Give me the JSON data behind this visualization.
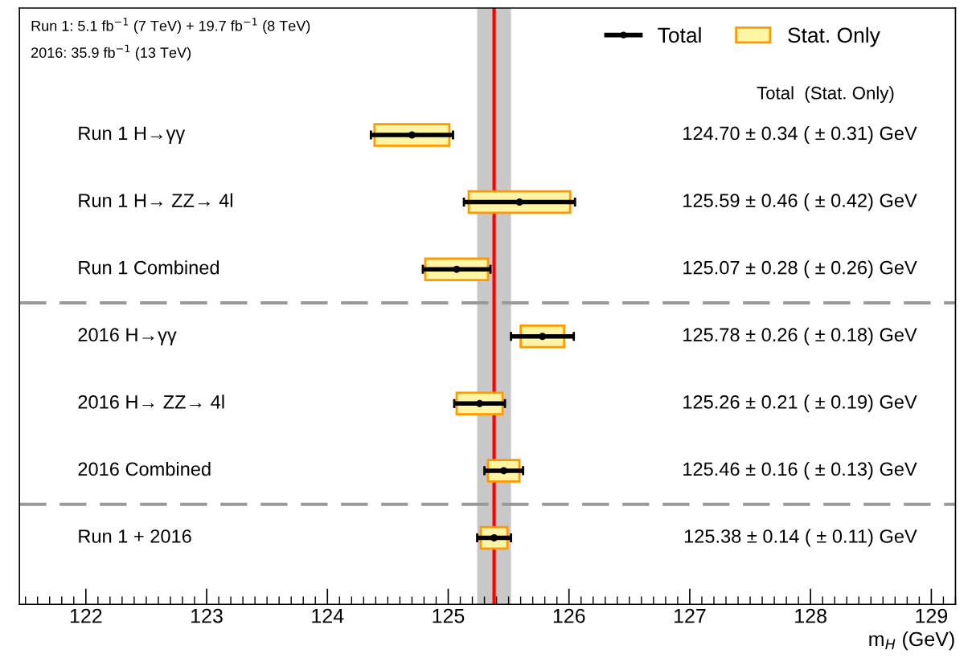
{
  "chart_data": {
    "type": "scatter",
    "orientation": "horizontal",
    "xlabel": "m$_{H}$ (GeV)",
    "annotations": [
      "Run 1: 5.1 fb$^{−1}$ (7 TeV) + 19.7 fb$^{−1}$ (8 TeV)",
      "2016: 35.9 fb$^{−1}$ (13 TeV)",
      "Total  (Stat. Only)",
      "124.70 ± 0.34 ( ± 0.31) GeV",
      "125.59 ± 0.46 ( ± 0.42) GeV",
      "125.07 ± 0.28 ( ± 0.26) GeV",
      "125.78 ± 0.26 ( ± 0.18) GeV",
      "125.26 ± 0.21 ( ± 0.19) GeV",
      "125.46 ± 0.16 ( ± 0.13) GeV",
      "125.38 ± 0.14 ( ± 0.11) GeV"
    ],
    "categories": [
      "Run 1 H→γγ",
      "Run 1 H→ ZZ→ 4l",
      "Run 1 Combined",
      "2016 H→γγ",
      "2016 H→ ZZ→ 4l",
      "2016 Combined",
      "Run 1 + 2016"
    ],
    "xlim": [
      121.45,
      129.2
    ],
    "xticks": [
      122,
      123,
      124,
      125,
      126,
      127,
      128,
      129
    ],
    "legend": "top right",
    "grid": false,
    "tick_labels": "x",
    "series": [
      {
        "name": "Total",
        "color": "#000000",
        "marker": "circle",
        "values": [
          124.7,
          125.59,
          125.07,
          125.78,
          125.26,
          125.46,
          125.38
        ],
        "errors": [
          0.34,
          0.46,
          0.28,
          0.26,
          0.21,
          0.16,
          0.14
        ]
      },
      {
        "name": "Stat. Only",
        "type": "bar",
        "color": "#fff5a5",
        "base": [
          124.39,
          125.17,
          124.81,
          125.6,
          125.07,
          125.33,
          125.27
        ],
        "values": [
          0.62,
          0.84,
          0.52,
          0.36,
          0.38,
          0.26,
          0.22
        ]
      }
    ],
    "ref_lines": [
      {
        "axis": "x",
        "value": 125.38,
        "color": "#ff0000",
        "line_style": "solid"
      }
    ],
    "bands": [
      {
        "axis": "x",
        "from": 125.24,
        "to": 125.52,
        "color": "#c8c8c8"
      }
    ]
  }
}
